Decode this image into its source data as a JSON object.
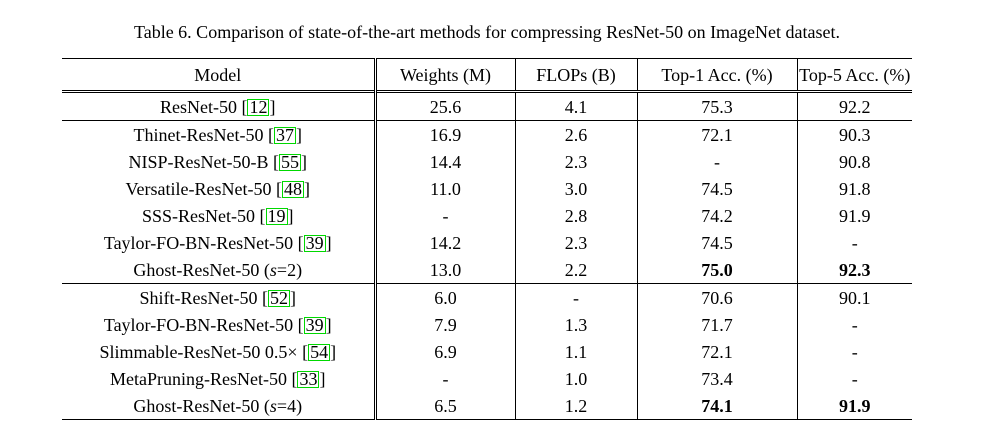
{
  "caption": "Table 6. Comparison of state-of-the-art methods for compressing ResNet-50 on ImageNet dataset.",
  "table": {
    "citation_box_color": "#00d800",
    "columns": [
      "Model",
      "Weights (M)",
      "FLOPs (B)",
      "Top-1 Acc. (%)",
      "Top-5 Acc. (%)"
    ],
    "groups": [
      {
        "rows": [
          {
            "model": "ResNet-50",
            "cite": "12",
            "weights": "25.6",
            "flops": "4.1",
            "top1": "75.3",
            "top5": "92.2",
            "bold_top1": false,
            "bold_top5": false
          }
        ]
      },
      {
        "rows": [
          {
            "model": "Thinet-ResNet-50",
            "cite": "37",
            "weights": "16.9",
            "flops": "2.6",
            "top1": "72.1",
            "top5": "90.3",
            "bold_top1": false,
            "bold_top5": false
          },
          {
            "model": "NISP-ResNet-50-B",
            "cite": "55",
            "weights": "14.4",
            "flops": "2.3",
            "top1": "-",
            "top5": "90.8",
            "bold_top1": false,
            "bold_top5": false
          },
          {
            "model": "Versatile-ResNet-50",
            "cite": "48",
            "weights": "11.0",
            "flops": "3.0",
            "top1": "74.5",
            "top5": "91.8",
            "bold_top1": false,
            "bold_top5": false
          },
          {
            "model": "SSS-ResNet-50",
            "cite": "19",
            "weights": "-",
            "flops": "2.8",
            "top1": "74.2",
            "top5": "91.9",
            "bold_top1": false,
            "bold_top5": false
          },
          {
            "model": "Taylor-FO-BN-ResNet-50",
            "cite": "39",
            "weights": "14.2",
            "flops": "2.3",
            "top1": "74.5",
            "top5": "-",
            "bold_top1": false,
            "bold_top5": false
          },
          {
            "model": "Ghost-ResNet-50 (s=2)",
            "cite": null,
            "weights": "13.0",
            "flops": "2.2",
            "top1": "75.0",
            "top5": "92.3",
            "bold_top1": true,
            "bold_top5": true
          }
        ]
      },
      {
        "rows": [
          {
            "model": "Shift-ResNet-50",
            "cite": "52",
            "weights": "6.0",
            "flops": "-",
            "top1": "70.6",
            "top5": "90.1",
            "bold_top1": false,
            "bold_top5": false
          },
          {
            "model": "Taylor-FO-BN-ResNet-50",
            "cite": "39",
            "weights": "7.9",
            "flops": "1.3",
            "top1": "71.7",
            "top5": "-",
            "bold_top1": false,
            "bold_top5": false
          },
          {
            "model": "Slimmable-ResNet-50 0.5×",
            "cite": "54",
            "weights": "6.9",
            "flops": "1.1",
            "top1": "72.1",
            "top5": "-",
            "bold_top1": false,
            "bold_top5": false
          },
          {
            "model": "MetaPruning-ResNet-50",
            "cite": "33",
            "weights": "-",
            "flops": "1.0",
            "top1": "73.4",
            "top5": "-",
            "bold_top1": false,
            "bold_top5": false
          },
          {
            "model": "Ghost-ResNet-50 (s=4)",
            "cite": null,
            "weights": "6.5",
            "flops": "1.2",
            "top1": "74.1",
            "top5": "91.9",
            "bold_top1": true,
            "bold_top5": true
          }
        ]
      }
    ]
  }
}
